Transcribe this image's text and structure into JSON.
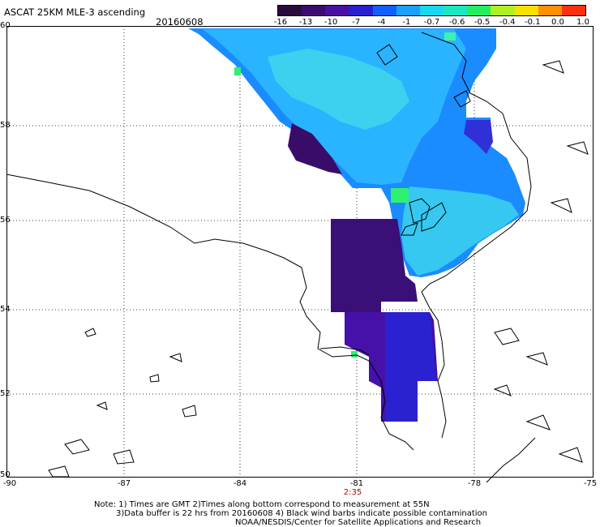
{
  "header": {
    "title": "ASCAT 25KM MLE-3 ascending",
    "date": "20160608"
  },
  "colorbar": {
    "labels": [
      "-16",
      "-13",
      "-10",
      "-7",
      "-4",
      "-1",
      "-0.7",
      "-0.6",
      "-0.5",
      "-0.4",
      "-0.1",
      "0.0",
      "1.0"
    ],
    "colors": [
      "#2b0a3d",
      "#3d0b6e",
      "#4a10a0",
      "#2a20d0",
      "#1060ff",
      "#1aa0ff",
      "#18d8f0",
      "#1ae8c0",
      "#22f060",
      "#b0f020",
      "#f8e000",
      "#ff9000",
      "#ff3010"
    ]
  },
  "map": {
    "lat_labels": [
      "60",
      "58",
      "56",
      "54",
      "52",
      "50"
    ],
    "lon_labels": [
      "-90",
      "-87",
      "-84",
      "-81",
      "-78",
      "-75"
    ],
    "time_label": "2:35",
    "grid": true
  },
  "notes": {
    "line1": "Note: 1) Times are GMT 2)Times along bottom correspond to measurement at 55N",
    "line2": "3)Data buffer is 22 hrs from 20160608 4) Black wind barbs indicate possible contamination",
    "line3": "NOAA/NESDIS/Center for Satellite Applications and Research"
  }
}
